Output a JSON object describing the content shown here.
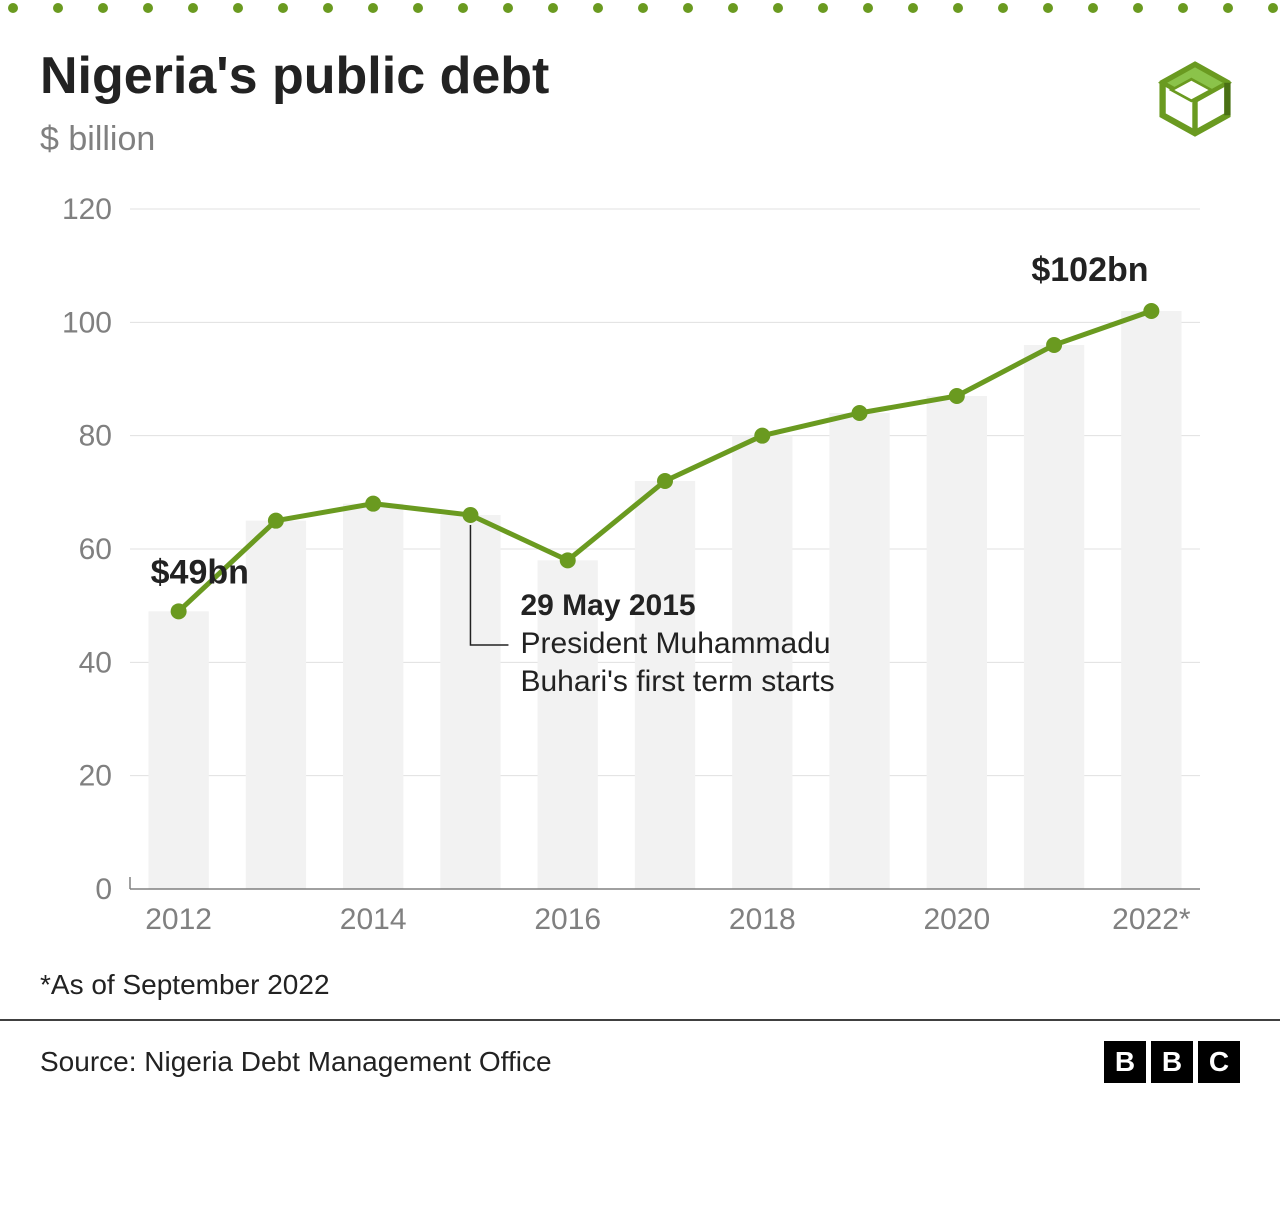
{
  "title": "Nigeria's public debt",
  "subtitle": "$ billion",
  "chart": {
    "type": "line_with_bars",
    "years": [
      2012,
      2013,
      2014,
      2015,
      2016,
      2017,
      2018,
      2019,
      2020,
      2021,
      2022
    ],
    "values": [
      49,
      65,
      68,
      66,
      58,
      72,
      80,
      84,
      87,
      96,
      102
    ],
    "x_tick_labels": [
      "2012",
      "2014",
      "2016",
      "2018",
      "2020",
      "2022*"
    ],
    "x_tick_years": [
      2012,
      2014,
      2016,
      2018,
      2020,
      2022
    ],
    "y_ticks": [
      0,
      20,
      40,
      60,
      80,
      100,
      120
    ],
    "ylim": [
      0,
      120
    ],
    "line_color": "#6a9a20",
    "point_color": "#6a9a20",
    "bar_color": "#f2f2f2",
    "grid_color": "#e0e0e0",
    "axis_color": "#808080",
    "background_color": "#ffffff",
    "line_width": 5,
    "point_radius": 8,
    "bar_width_ratio": 0.62,
    "axis_label_fontsize": 30,
    "data_label_fontsize": 34
  },
  "labels": {
    "first": "$49bn",
    "last": "$102bn"
  },
  "annotation": {
    "year": 2015,
    "title": "29 May 2015",
    "line1": "President Muhammadu",
    "line2": "Buhari's first term starts"
  },
  "footnote": "*As of September 2022",
  "source": "Source: Nigeria Debt Management Office",
  "bbc": [
    "B",
    "B",
    "C"
  ],
  "dots": {
    "count": 30,
    "color": "#6a9a20"
  }
}
